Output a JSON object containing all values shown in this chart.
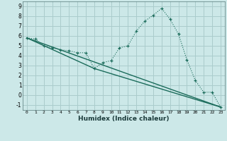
{
  "xlabel": "Humidex (Indice chaleur)",
  "background_color": "#cce8e8",
  "grid_color": "#aacccc",
  "line_color": "#1a6b5a",
  "xlim": [
    -0.5,
    23.5
  ],
  "ylim": [
    -1.5,
    9.5
  ],
  "xticks": [
    0,
    1,
    2,
    3,
    4,
    5,
    6,
    7,
    8,
    9,
    10,
    11,
    12,
    13,
    14,
    15,
    16,
    17,
    18,
    19,
    20,
    21,
    22,
    23
  ],
  "yticks": [
    -1,
    0,
    1,
    2,
    3,
    4,
    5,
    6,
    7,
    8,
    9
  ],
  "series1_x": [
    0,
    1,
    2,
    3,
    4,
    5,
    6,
    7,
    8,
    9,
    10,
    11,
    12,
    13,
    14,
    15,
    16,
    17,
    18,
    19,
    20,
    21,
    22,
    23
  ],
  "series1_y": [
    5.8,
    5.7,
    5.0,
    4.8,
    4.6,
    4.5,
    4.3,
    4.3,
    2.7,
    3.3,
    3.5,
    4.8,
    5.0,
    6.5,
    7.5,
    8.1,
    8.8,
    7.7,
    6.2,
    3.6,
    1.5,
    0.3,
    0.3,
    -1.2
  ],
  "series2_x": [
    0,
    23
  ],
  "series2_y": [
    5.8,
    -1.2
  ],
  "series3_x": [
    0,
    8,
    23
  ],
  "series3_y": [
    5.8,
    2.7,
    -1.2
  ]
}
